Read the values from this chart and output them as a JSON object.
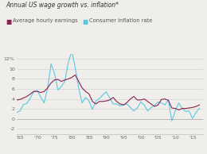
{
  "title": "Annual US wage growth vs. inflation*",
  "legend_wage": "Average hourly earnings",
  "legend_cpi": "Consumer inflation rate",
  "wage_color": "#8B2252",
  "cpi_color": "#5BC8E0",
  "background_color": "#F0EEEB",
  "ylim": [
    -3,
    13
  ],
  "yticks": [
    -2,
    0,
    2,
    4,
    6,
    8,
    10,
    12
  ],
  "ytick_labels": [
    "-2",
    "0",
    "2",
    "4",
    "6",
    "8",
    "10",
    "12%"
  ],
  "xtick_positions": [
    1965,
    1970,
    1975,
    1980,
    1985,
    1990,
    1995,
    2000,
    2005,
    2010,
    2015
  ],
  "xtick_labels": [
    "'65",
    "'70",
    "'75",
    "'80",
    "'85",
    "'90",
    "'95",
    "'00",
    "'05",
    "'10",
    "'15"
  ],
  "years": [
    1964,
    1965,
    1966,
    1967,
    1968,
    1969,
    1970,
    1971,
    1972,
    1973,
    1974,
    1975,
    1976,
    1977,
    1978,
    1979,
    1980,
    1981,
    1982,
    1983,
    1984,
    1985,
    1986,
    1987,
    1988,
    1989,
    1990,
    1991,
    1992,
    1993,
    1994,
    1995,
    1996,
    1997,
    1998,
    1999,
    2000,
    2001,
    2002,
    2003,
    2004,
    2005,
    2006,
    2007,
    2008,
    2009,
    2010,
    2011,
    2012,
    2013,
    2014,
    2015,
    2016,
    2017
  ],
  "wage": [
    3.8,
    3.9,
    4.2,
    4.5,
    5.0,
    5.5,
    5.5,
    5.3,
    5.5,
    6.2,
    7.2,
    7.8,
    7.9,
    7.5,
    7.8,
    8.0,
    8.3,
    8.8,
    7.5,
    6.2,
    5.5,
    5.0,
    3.5,
    3.0,
    3.5,
    3.5,
    3.6,
    3.8,
    4.3,
    3.5,
    3.0,
    2.8,
    3.3,
    4.0,
    4.5,
    3.8,
    3.8,
    4.0,
    3.5,
    3.0,
    2.5,
    2.8,
    3.9,
    4.0,
    3.7,
    2.2,
    2.1,
    1.8,
    2.1,
    2.1,
    2.2,
    2.3,
    2.5,
    2.8
  ],
  "cpi": [
    1.3,
    1.6,
    2.9,
    3.1,
    4.2,
    5.5,
    5.7,
    4.4,
    3.2,
    6.2,
    11.0,
    9.1,
    5.8,
    6.5,
    7.6,
    11.3,
    13.5,
    10.3,
    6.2,
    3.2,
    4.3,
    3.6,
    1.9,
    3.6,
    4.1,
    4.8,
    5.4,
    4.2,
    3.0,
    3.0,
    2.6,
    2.8,
    3.0,
    2.3,
    1.6,
    2.2,
    3.4,
    2.8,
    1.6,
    2.3,
    2.7,
    3.4,
    3.2,
    2.8,
    3.8,
    -0.4,
    1.6,
    3.2,
    2.1,
    1.5,
    1.6,
    0.1,
    1.3,
    2.1
  ]
}
